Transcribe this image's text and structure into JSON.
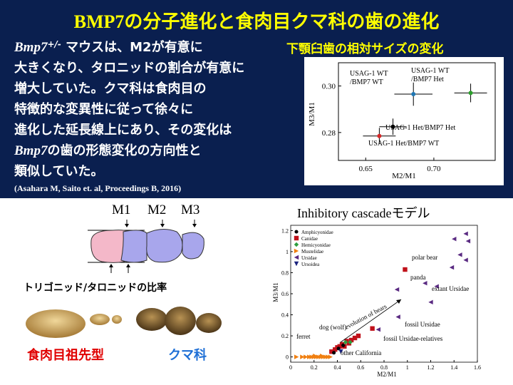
{
  "title": "BMP7の分子進化と食肉目クマ科の歯の進化",
  "description": {
    "gene": "Bmp7",
    "sup": "+/-",
    "line1_rest": " マウスは、M2が有意に",
    "line2": "大きくなり、タロニッドの割合が有意に",
    "line3": "増大していた。クマ科は食肉目の",
    "line4": "特徴的な変異性に従って徐々に",
    "line5": "進化した延長線上にあり、その変化は",
    "line6_gene": "Bmp7",
    "line6_rest": "の歯の形態変化の方向性と",
    "line7": "類似していた。"
  },
  "citation": "(Asahara M, Saito et. al, Proceedings B, 2016)",
  "right_heading": "下顎臼歯の相対サイズの変化",
  "teeth": {
    "labels": [
      "M1",
      "M2",
      "M3"
    ],
    "ratio_label": "トリゴニッド/タロニッドの比率",
    "ancestor_label": "食肉目祖先型",
    "bear_label": "クマ科"
  },
  "inhibitory_title": "Inhibitory cascadeモデル",
  "chart_data": [
    {
      "type": "scatter",
      "xlabel": "M2/M1",
      "ylabel": "M3/M1",
      "xlim": [
        0.63,
        0.745
      ],
      "ylim": [
        0.268,
        0.31
      ],
      "xticks": [
        "0.65",
        "0.70"
      ],
      "yticks": [
        "0.28",
        "0.30"
      ],
      "xtick_values": [
        0.65,
        0.7
      ],
      "ytick_values": [
        0.28,
        0.3
      ],
      "points": [
        {
          "label": "USAG-1 Het/BMP7 WT",
          "x": 0.66,
          "y": 0.2785,
          "xerr": 0.012,
          "yerr": 0.0035,
          "color": "#d62728"
        },
        {
          "label": "USAG-1 Het/BMP7 Het",
          "x": 0.67,
          "y": 0.2825,
          "xerr": 0.01,
          "yerr": 0.0035,
          "color": "#000000"
        },
        {
          "label": "USAG-1 WT /BMP7 WT",
          "x": 0.685,
          "y": 0.2965,
          "xerr": 0.014,
          "yerr": 0.005,
          "color": "#1f77b4"
        },
        {
          "label": "USAG-1 WT /BMP7 Het",
          "x": 0.727,
          "y": 0.297,
          "xerr": 0.012,
          "yerr": 0.004,
          "color": "#2ca02c"
        }
      ]
    },
    {
      "type": "scatter",
      "xlabel": "M2/M1",
      "ylabel": "M3/M1",
      "xlim": [
        0,
        1.6
      ],
      "ylim": [
        -0.05,
        1.25
      ],
      "xticks": [
        "0",
        "0.2",
        "0.4",
        "0.6",
        "0.8",
        "1",
        "1.2",
        "1.4",
        "1.6"
      ],
      "yticks": [
        "0",
        "0.2",
        "0.4",
        "0.6",
        "0.8",
        "1",
        "1.2"
      ],
      "xtick_values": [
        0,
        0.2,
        0.4,
        0.6,
        0.8,
        1.0,
        1.2,
        1.4,
        1.6
      ],
      "ytick_values": [
        0,
        0.2,
        0.4,
        0.6,
        0.8,
        1.0,
        1.2
      ],
      "legend": [
        {
          "name": "Amphicyonidae",
          "color": "#000000",
          "marker": "circle"
        },
        {
          "name": "Canidae",
          "color": "#c0111a",
          "marker": "square"
        },
        {
          "name": "Hemicyonidae",
          "color": "#2e9e3e",
          "marker": "diamond"
        },
        {
          "name": "Mustelidae",
          "color": "#f07f10",
          "marker": "tri-right"
        },
        {
          "name": "Ursidae",
          "color": "#5a2a82",
          "marker": "tri-left"
        },
        {
          "name": "Ursoidea",
          "color": "#1a237e",
          "marker": "tri-down"
        }
      ],
      "series": [
        {
          "name": "Mustelidae",
          "points": [
            [
              0.05,
              0.0
            ],
            [
              0.1,
              0.0
            ],
            [
              0.13,
              0.0
            ],
            [
              0.16,
              0.0
            ],
            [
              0.18,
              0.0
            ],
            [
              0.2,
              0.0
            ],
            [
              0.22,
              0.0
            ],
            [
              0.24,
              0.0
            ],
            [
              0.26,
              0.0
            ],
            [
              0.28,
              0.0
            ],
            [
              0.3,
              0.0
            ],
            [
              0.32,
              0.0
            ],
            [
              0.34,
              0.0
            ],
            [
              0.21,
              0.01
            ],
            [
              0.27,
              0.01
            ]
          ]
        },
        {
          "name": "Canidae",
          "points": [
            [
              0.35,
              0.05
            ],
            [
              0.38,
              0.07
            ],
            [
              0.4,
              0.09
            ],
            [
              0.42,
              0.1
            ],
            [
              0.44,
              0.12
            ],
            [
              0.46,
              0.1
            ],
            [
              0.48,
              0.15
            ],
            [
              0.5,
              0.13
            ],
            [
              0.52,
              0.16
            ],
            [
              0.55,
              0.18
            ],
            [
              0.58,
              0.2
            ],
            [
              0.7,
              0.27
            ],
            [
              0.98,
              0.83
            ]
          ]
        },
        {
          "name": "Amphicyonidae",
          "points": [
            [
              0.37,
              0.04
            ],
            [
              0.41,
              0.08
            ],
            [
              0.45,
              0.11
            ]
          ]
        },
        {
          "name": "Hemicyonidae",
          "points": [
            [
              0.47,
              0.14
            ],
            [
              0.51,
              0.14
            ]
          ]
        },
        {
          "name": "Ursidae",
          "points": [
            [
              0.75,
              0.26
            ],
            [
              0.91,
              0.64
            ],
            [
              0.92,
              0.38
            ],
            [
              1.15,
              0.7
            ],
            [
              1.2,
              0.52
            ],
            [
              1.25,
              0.67
            ],
            [
              1.4,
              1.12
            ],
            [
              1.5,
              1.17
            ],
            [
              1.52,
              1.1
            ],
            [
              1.45,
              0.97
            ],
            [
              1.5,
              0.92
            ],
            [
              1.38,
              0.85
            ]
          ]
        },
        {
          "name": "Ursoidea",
          "points": [
            [
              0.43,
              0.05
            ]
          ]
        }
      ],
      "annotations": [
        "polar bear",
        "panda",
        "extant Ursidae",
        "evolution of bears",
        "fossil Ursidae",
        "dog (wolf)",
        "fossil Ursidae-relatives",
        "ferret",
        "other Californiа"
      ]
    }
  ]
}
